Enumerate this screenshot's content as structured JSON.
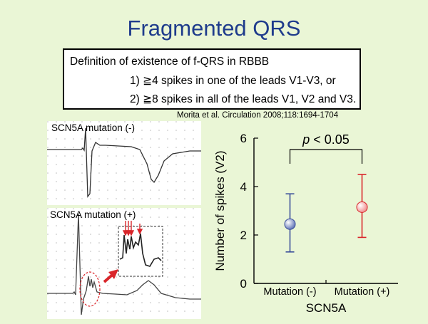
{
  "slide": {
    "title": "Fragmented QRS",
    "definition": {
      "heading": "Definition of existence of f-QRS in RBBB",
      "criteria": [
        "1) ≧4 spikes in one of the leads V1-V3, or",
        "2) ≧8 spikes in all of the leads V1, V2 and V3."
      ]
    },
    "citation": "Morita et al. Circulation 2008;118:1694-1704",
    "ecg_panels": [
      {
        "label": "SCN5A mutation (-)"
      },
      {
        "label": "SCN5A mutation (+)"
      }
    ]
  },
  "chart_data": {
    "type": "scatter",
    "ylabel": "Number of spikes (V2)",
    "xlabel": "SCN5A",
    "categories": [
      "Mutation (-)",
      "Mutation (+)"
    ],
    "ylim": [
      0,
      6
    ],
    "yticks": [
      "0",
      "2",
      "4",
      "6"
    ],
    "points": [
      {
        "category": "Mutation (-)",
        "mean": 2.45,
        "lower": 1.3,
        "upper": 3.7,
        "color": "#5a6fb5",
        "line_color": "#3b4f9a"
      },
      {
        "category": "Mutation (+)",
        "mean": 3.15,
        "lower": 1.9,
        "upper": 4.5,
        "color": "#f08a8a",
        "line_color": "#d9262b"
      }
    ],
    "annotation": {
      "italic": "p",
      "text": " < 0.05"
    },
    "grid": false
  }
}
